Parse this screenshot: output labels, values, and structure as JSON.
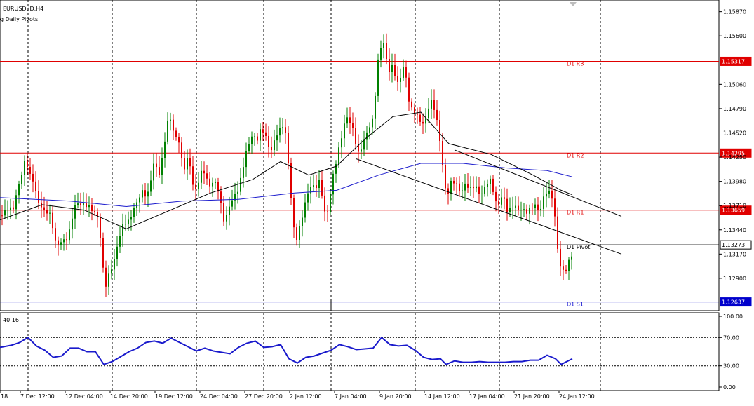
{
  "symbol_title": "EURUSD.ID,H4",
  "indicator_label": "g Daily Pivots.",
  "rsi_value_label": "40.16",
  "colors": {
    "bull": "#008000",
    "bear": "#e00000",
    "pivot_red": "#e00000",
    "pivot_blue": "#0000cc",
    "ma_blue": "#1a1acc",
    "ma_black": "#000000",
    "rsi": "#1a1acc",
    "grid": "#000000"
  },
  "chart_data": [
    {
      "type": "candlestick",
      "title": "EURUSD.ID,H4",
      "price_axis_ticks": [
        "1.15870",
        "1.15600",
        "1.15060",
        "1.14790",
        "1.14520",
        "1.14250",
        "1.13980",
        "1.13710",
        "1.13440",
        "1.13170",
        "1.12900"
      ],
      "ylim": [
        1.1254,
        1.16
      ],
      "time_axis_ticks": [
        "18",
        "7 Dec 12:00",
        "12 Dec 04:00",
        "14 Dec 20:00",
        "19 Dec 12:00",
        "24 Dec 04:00",
        "27 Dec 20:00",
        "2 Jan 12:00",
        "7 Jan 04:00",
        "9 Jan 20:00",
        "14 Jan 12:00",
        "17 Jan 04:00",
        "21 Jan 20:00",
        "24 Jan 12:00"
      ],
      "pivot_levels": [
        {
          "name": "D1 R3",
          "value": 1.15317,
          "tag": "1.15317",
          "color": "red"
        },
        {
          "name": "D1 R2",
          "value": 1.14295,
          "tag": "1.14295",
          "color": "red"
        },
        {
          "name": "D1 R1",
          "value": 1.13659,
          "tag": "1.13659",
          "color": "red"
        },
        {
          "name": "D1 Pivot",
          "value": 1.13273,
          "tag": "1.13273",
          "color": "black"
        },
        {
          "name": "D1 S1",
          "value": 1.12637,
          "tag": "1.12637",
          "color": "blue"
        }
      ],
      "close_path": [
        [
          0,
          1.136
        ],
        [
          4,
          1.1362
        ],
        [
          8,
          1.1371
        ],
        [
          12,
          1.137
        ],
        [
          16,
          1.1368
        ],
        [
          20,
          1.1373
        ],
        [
          24,
          1.1391
        ],
        [
          28,
          1.1398
        ],
        [
          32,
          1.141
        ],
        [
          36,
          1.1425
        ],
        [
          40,
          1.1403
        ],
        [
          44,
          1.1402
        ],
        [
          48,
          1.1396
        ],
        [
          52,
          1.1377
        ],
        [
          56,
          1.1375
        ],
        [
          60,
          1.1369
        ],
        [
          64,
          1.1364
        ],
        [
          68,
          1.1368
        ],
        [
          72,
          1.1355
        ],
        [
          76,
          1.134
        ],
        [
          80,
          1.132
        ],
        [
          84,
          1.133
        ],
        [
          88,
          1.1328
        ],
        [
          92,
          1.1332
        ],
        [
          96,
          1.1336
        ],
        [
          100,
          1.1349
        ],
        [
          104,
          1.137
        ],
        [
          108,
          1.1375
        ],
        [
          112,
          1.1376
        ],
        [
          116,
          1.1372
        ],
        [
          120,
          1.1375
        ],
        [
          124,
          1.1368
        ],
        [
          128,
          1.1369
        ],
        [
          132,
          1.136
        ],
        [
          136,
          1.1362
        ],
        [
          140,
          1.135
        ],
        [
          144,
          1.132
        ],
        [
          148,
          1.128
        ],
        [
          152,
          1.1288
        ],
        [
          156,
          1.1302
        ],
        [
          160,
          1.1305
        ],
        [
          164,
          1.132
        ],
        [
          168,
          1.1332
        ],
        [
          172,
          1.1345
        ],
        [
          176,
          1.135
        ],
        [
          180,
          1.1352
        ],
        [
          184,
          1.135
        ],
        [
          188,
          1.1365
        ],
        [
          192,
          1.1368
        ],
        [
          196,
          1.138
        ],
        [
          200,
          1.1385
        ],
        [
          204,
          1.1391
        ],
        [
          208,
          1.138
        ],
        [
          212,
          1.1393
        ],
        [
          216,
          1.141
        ],
        [
          220,
          1.1425
        ],
        [
          224,
          1.14
        ],
        [
          228,
          1.141
        ],
        [
          232,
          1.143
        ],
        [
          236,
          1.1455
        ],
        [
          240,
          1.147
        ],
        [
          244,
          1.1465
        ],
        [
          248,
          1.1445
        ],
        [
          252,
          1.1452
        ],
        [
          256,
          1.1438
        ],
        [
          260,
          1.141
        ],
        [
          264,
          1.142
        ],
        [
          268,
          1.1425
        ],
        [
          272,
          1.1405
        ],
        [
          276,
          1.138
        ],
        [
          280,
          1.1392
        ],
        [
          284,
          1.14
        ],
        [
          288,
          1.1412
        ],
        [
          292,
          1.1405
        ],
        [
          296,
          1.1395
        ],
        [
          300,
          1.1395
        ],
        [
          304,
          1.1402
        ],
        [
          308,
          1.1395
        ],
        [
          312,
          1.1385
        ],
        [
          316,
          1.136
        ],
        [
          320,
          1.135
        ],
        [
          324,
          1.1365
        ],
        [
          328,
          1.1372
        ],
        [
          332,
          1.1378
        ],
        [
          336,
          1.1385
        ],
        [
          340,
          1.139
        ],
        [
          344,
          1.141
        ],
        [
          348,
          1.1425
        ],
        [
          352,
          1.144
        ],
        [
          356,
          1.1445
        ],
        [
          360,
          1.1455
        ],
        [
          364,
          1.144
        ],
        [
          368,
          1.145
        ],
        [
          372,
          1.1455
        ],
        [
          376,
          1.145
        ],
        [
          380,
          1.144
        ],
        [
          384,
          1.143
        ],
        [
          388,
          1.1435
        ],
        [
          392,
          1.145
        ],
        [
          396,
          1.1455
        ],
        [
          400,
          1.146
        ],
        [
          404,
          1.1465
        ],
        [
          408,
          1.144
        ],
        [
          412,
          1.14
        ],
        [
          416,
          1.136
        ],
        [
          420,
          1.1328
        ],
        [
          424,
          1.1338
        ],
        [
          428,
          1.135
        ],
        [
          432,
          1.1365
        ],
        [
          436,
          1.138
        ],
        [
          440,
          1.139
        ],
        [
          444,
          1.1398
        ],
        [
          448,
          1.139
        ],
        [
          452,
          1.14
        ],
        [
          456,
          1.1398
        ],
        [
          460,
          1.1372
        ],
        [
          464,
          1.1355
        ],
        [
          468,
          1.137
        ],
        [
          472,
          1.1395
        ],
        [
          476,
          1.141
        ],
        [
          480,
          1.1425
        ],
        [
          484,
          1.144
        ],
        [
          488,
          1.1455
        ],
        [
          492,
          1.147
        ],
        [
          496,
          1.1472
        ],
        [
          500,
          1.146
        ],
        [
          504,
          1.1455
        ],
        [
          508,
          1.143
        ],
        [
          512,
          1.1428
        ],
        [
          516,
          1.144
        ],
        [
          520,
          1.1445
        ],
        [
          524,
          1.1455
        ],
        [
          528,
          1.146
        ],
        [
          532,
          1.147
        ],
        [
          536,
          1.152
        ],
        [
          540,
          1.1545
        ],
        [
          544,
          1.1555
        ],
        [
          548,
          1.1552
        ],
        [
          552,
          1.152
        ],
        [
          556,
          1.1525
        ],
        [
          560,
          1.1528
        ],
        [
          564,
          1.1505
        ],
        [
          568,
          1.1505
        ],
        [
          572,
          1.152
        ],
        [
          576,
          1.1525
        ],
        [
          580,
          1.1498
        ],
        [
          584,
          1.1478
        ],
        [
          588,
          1.148
        ],
        [
          592,
          1.1475
        ],
        [
          596,
          1.147
        ],
        [
          600,
          1.1465
        ],
        [
          604,
          1.1462
        ],
        [
          608,
          1.1475
        ],
        [
          612,
          1.1485
        ],
        [
          616,
          1.1485
        ],
        [
          620,
          1.147
        ],
        [
          624,
          1.1455
        ],
        [
          628,
          1.143
        ],
        [
          632,
          1.14
        ],
        [
          636,
          1.138
        ],
        [
          640,
          1.1395
        ],
        [
          644,
          1.1402
        ],
        [
          648,
          1.1398
        ],
        [
          652,
          1.1393
        ],
        [
          656,
          1.1385
        ],
        [
          660,
          1.139
        ],
        [
          664,
          1.1396
        ],
        [
          668,
          1.1385
        ],
        [
          672,
          1.139
        ],
        [
          676,
          1.1392
        ],
        [
          680,
          1.1388
        ],
        [
          684,
          1.1382
        ],
        [
          688,
          1.139
        ],
        [
          692,
          1.1395
        ],
        [
          696,
          1.1403
        ],
        [
          700,
          1.1398
        ],
        [
          704,
          1.138
        ],
        [
          708,
          1.1368
        ],
        [
          712,
          1.1375
        ],
        [
          716,
          1.1382
        ],
        [
          720,
          1.1368
        ],
        [
          724,
          1.136
        ],
        [
          728,
          1.137
        ],
        [
          732,
          1.1372
        ],
        [
          736,
          1.1369
        ],
        [
          740,
          1.1368
        ],
        [
          744,
          1.137
        ],
        [
          748,
          1.1365
        ],
        [
          752,
          1.1365
        ],
        [
          756,
          1.1368
        ],
        [
          760,
          1.137
        ],
        [
          764,
          1.1368
        ],
        [
          768,
          1.136
        ],
        [
          772,
          1.1372
        ],
        [
          776,
          1.1385
        ],
        [
          780,
          1.1388
        ],
        [
          784,
          1.1385
        ],
        [
          788,
          1.138
        ],
        [
          792,
          1.134
        ],
        [
          796,
          1.131
        ],
        [
          800,
          1.13
        ],
        [
          804,
          1.1296
        ],
        [
          808,
          1.1303
        ],
        [
          812,
          1.131
        ],
        [
          816,
          1.1318
        ]
      ],
      "moving_averages": [
        {
          "name": "MA slow",
          "color": "blue",
          "points": [
            [
              0,
              1.138
            ],
            [
              100,
              1.1376
            ],
            [
              180,
              1.137
            ],
            [
              260,
              1.1376
            ],
            [
              340,
              1.1378
            ],
            [
              420,
              1.1385
            ],
            [
              480,
              1.1388
            ],
            [
              540,
              1.1405
            ],
            [
              600,
              1.1418
            ],
            [
              660,
              1.1418
            ],
            [
              720,
              1.1413
            ],
            [
              780,
              1.141
            ],
            [
              816,
              1.1403
            ]
          ]
        },
        {
          "name": "MA fast",
          "color": "black",
          "points": [
            [
              0,
              1.1355
            ],
            [
              60,
              1.1372
            ],
            [
              120,
              1.1366
            ],
            [
              180,
              1.1345
            ],
            [
              240,
              1.1365
            ],
            [
              300,
              1.1385
            ],
            [
              360,
              1.14
            ],
            [
              400,
              1.142
            ],
            [
              440,
              1.1405
            ],
            [
              480,
              1.1415
            ],
            [
              520,
              1.1445
            ],
            [
              560,
              1.147
            ],
            [
              600,
              1.1475
            ],
            [
              640,
              1.144
            ],
            [
              700,
              1.1428
            ],
            [
              760,
              1.1405
            ],
            [
              800,
              1.1388
            ],
            [
              816,
              1.1383
            ]
          ]
        }
      ],
      "trendlines": [
        {
          "from": [
            508,
            1.1423
          ],
          "to": [
            886,
            1.1317
          ]
        },
        {
          "from": [
            648,
            1.1433
          ],
          "to": [
            886,
            1.1359
          ]
        }
      ]
    },
    {
      "type": "line",
      "title": "RSI",
      "ylim": [
        0,
        100
      ],
      "y_ticks": [
        "100.00",
        "70.00",
        "30.00",
        "0.00"
      ],
      "levels": [
        70,
        30
      ],
      "current_value": 40.16,
      "values": [
        [
          0,
          56
        ],
        [
          16,
          59
        ],
        [
          28,
          63
        ],
        [
          40,
          70
        ],
        [
          52,
          58
        ],
        [
          64,
          52
        ],
        [
          76,
          42
        ],
        [
          88,
          44
        ],
        [
          100,
          55
        ],
        [
          112,
          55
        ],
        [
          124,
          50
        ],
        [
          136,
          50
        ],
        [
          148,
          32
        ],
        [
          160,
          36
        ],
        [
          172,
          43
        ],
        [
          184,
          50
        ],
        [
          196,
          55
        ],
        [
          208,
          63
        ],
        [
          220,
          65
        ],
        [
          232,
          62
        ],
        [
          244,
          69
        ],
        [
          256,
          63
        ],
        [
          268,
          57
        ],
        [
          280,
          51
        ],
        [
          292,
          55
        ],
        [
          304,
          51
        ],
        [
          316,
          49
        ],
        [
          328,
          47
        ],
        [
          340,
          56
        ],
        [
          352,
          62
        ],
        [
          364,
          65
        ],
        [
          376,
          56
        ],
        [
          388,
          57
        ],
        [
          400,
          60
        ],
        [
          412,
          40
        ],
        [
          424,
          34
        ],
        [
          436,
          42
        ],
        [
          448,
          44
        ],
        [
          460,
          48
        ],
        [
          472,
          52
        ],
        [
          484,
          60
        ],
        [
          496,
          57
        ],
        [
          508,
          53
        ],
        [
          520,
          54
        ],
        [
          532,
          55
        ],
        [
          544,
          70
        ],
        [
          556,
          60
        ],
        [
          568,
          58
        ],
        [
          580,
          59
        ],
        [
          592,
          52
        ],
        [
          604,
          42
        ],
        [
          616,
          39
        ],
        [
          628,
          40
        ],
        [
          636,
          32
        ],
        [
          648,
          37
        ],
        [
          660,
          35
        ],
        [
          672,
          35
        ],
        [
          684,
          36
        ],
        [
          696,
          35
        ],
        [
          708,
          35
        ],
        [
          720,
          35
        ],
        [
          732,
          36
        ],
        [
          744,
          36
        ],
        [
          756,
          38
        ],
        [
          768,
          38
        ],
        [
          780,
          45
        ],
        [
          792,
          40
        ],
        [
          800,
          32
        ],
        [
          808,
          36
        ],
        [
          816,
          40
        ]
      ]
    }
  ]
}
